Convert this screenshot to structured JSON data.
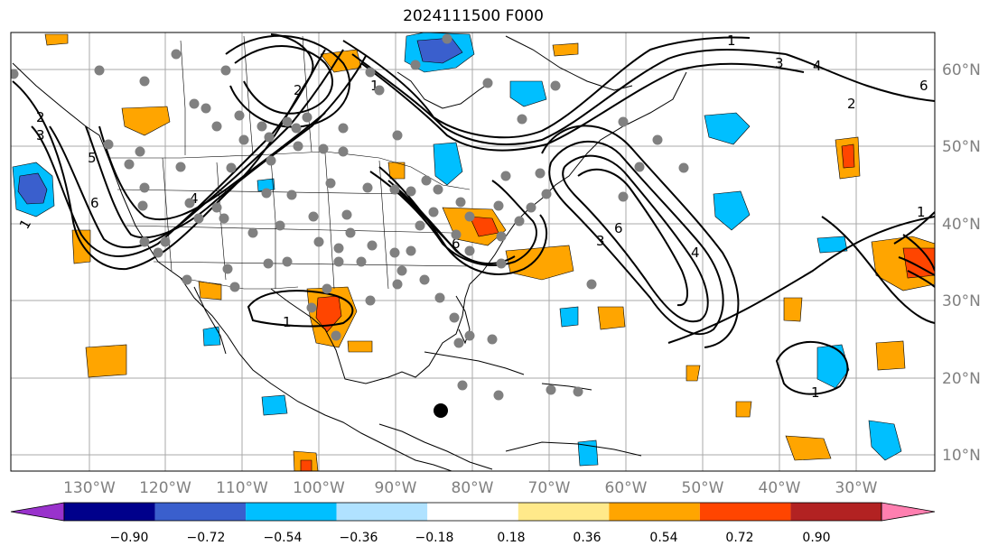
{
  "title": "2024111500 F000",
  "lon_ticks": [
    "130°W",
    "120°W",
    "110°W",
    "100°W",
    "90°W",
    "80°W",
    "70°W",
    "60°W",
    "50°W",
    "40°W",
    "30°W"
  ],
  "lat_ticks": [
    "60°N",
    "50°N",
    "40°N",
    "30°N",
    "20°N",
    "10°N"
  ],
  "colorbar": {
    "labels": [
      "−0.90",
      "−0.72",
      "−0.54",
      "−0.36",
      "−0.18",
      "0.18",
      "0.36",
      "0.54",
      "0.72",
      "0.90"
    ],
    "colors": [
      "#9932cc",
      "#00008b",
      "#3a5fcd",
      "#00bfff",
      "#b0e2ff",
      "#ffffff",
      "#ffe98a",
      "#ffa500",
      "#ff4500",
      "#b22222",
      "#ff7fb0"
    ]
  },
  "contour_labels": [
    "1",
    "2",
    "3",
    "5",
    "6",
    "4",
    "2",
    "1",
    "6",
    "1",
    "3",
    "6",
    "4",
    "2",
    "1",
    "3",
    "4",
    "6",
    "1",
    "1"
  ],
  "marker": "tropical-cyclone-position"
}
